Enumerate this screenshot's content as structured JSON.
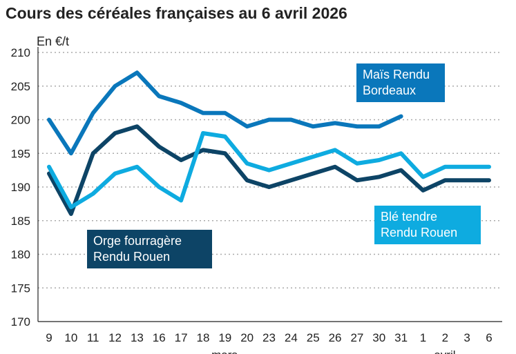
{
  "chart_data": {
    "type": "line",
    "title": "Cours des céréales françaises au 6 avril 2026",
    "ylabel": "En €/t",
    "ylim": [
      170,
      210
    ],
    "yticks": [
      170,
      175,
      180,
      185,
      190,
      195,
      200,
      205,
      210
    ],
    "grid": true,
    "categories": [
      "9",
      "10",
      "11",
      "12",
      "13",
      "16",
      "17",
      "18",
      "19",
      "20",
      "23",
      "24",
      "25",
      "26",
      "27",
      "30",
      "31",
      "1",
      "2",
      "3",
      "6"
    ],
    "month_labels": [
      "mars",
      "avril"
    ],
    "series": [
      {
        "name": "Maïs Rendu Bordeaux",
        "name_lines": [
          "Maïs Rendu",
          "Bordeaux"
        ],
        "color": "#0a77bb",
        "values": [
          200,
          195,
          201,
          205,
          207,
          203.5,
          202.5,
          201,
          201,
          199,
          200,
          200,
          199,
          199.5,
          199,
          199,
          200.5,
          null,
          null,
          null,
          null
        ]
      },
      {
        "name": "Blé tendre Rendu Rouen",
        "name_lines": [
          "Blé tendre",
          "Rendu Rouen"
        ],
        "color": "#0eabe0",
        "values": [
          193,
          187,
          189,
          192,
          193,
          190,
          188,
          198,
          197.5,
          193.5,
          192.5,
          193.5,
          194.5,
          195.5,
          193.5,
          194,
          195,
          191.5,
          193,
          193,
          193
        ]
      },
      {
        "name": "Orge fourragère Rendu Rouen",
        "name_lines": [
          "Orge fourragère",
          "Rendu Rouen"
        ],
        "color": "#0d4466",
        "values": [
          192,
          186,
          195,
          198,
          199,
          196,
          194,
          195.5,
          195,
          191,
          190,
          191,
          192,
          193,
          191,
          191.5,
          192.5,
          189.5,
          191,
          191,
          191
        ]
      }
    ]
  }
}
